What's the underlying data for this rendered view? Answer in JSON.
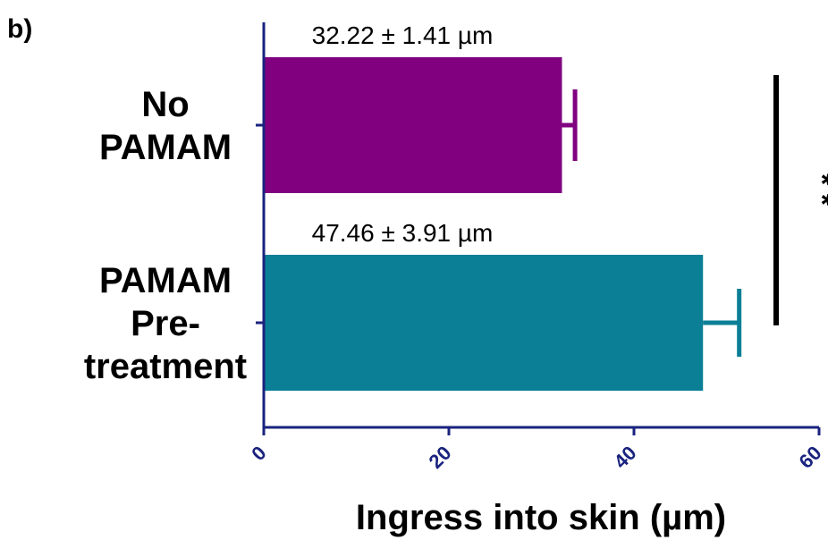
{
  "panel_label": "b)",
  "chart_data": {
    "type": "bar",
    "orientation": "horizontal",
    "categories": [
      {
        "lines": [
          "No",
          "PAMAM"
        ]
      },
      {
        "lines": [
          "PAMAM",
          "Pre-",
          "treatment"
        ]
      }
    ],
    "values": [
      32.22,
      47.46
    ],
    "errors": [
      1.41,
      3.91
    ],
    "bar_colors": [
      "#800080",
      "#0a7f95"
    ],
    "data_labels": [
      "32.22 ± 1.41 µm",
      "47.46 ± 3.91 µm"
    ],
    "xlabel": "Ingress into skin (µm)",
    "ylabel": "",
    "title": "",
    "xlim": [
      0,
      60
    ],
    "xticks": [
      "0",
      "20",
      "40",
      "60"
    ],
    "axis_color": "#1a237e",
    "grid": false,
    "significance": "* *"
  }
}
